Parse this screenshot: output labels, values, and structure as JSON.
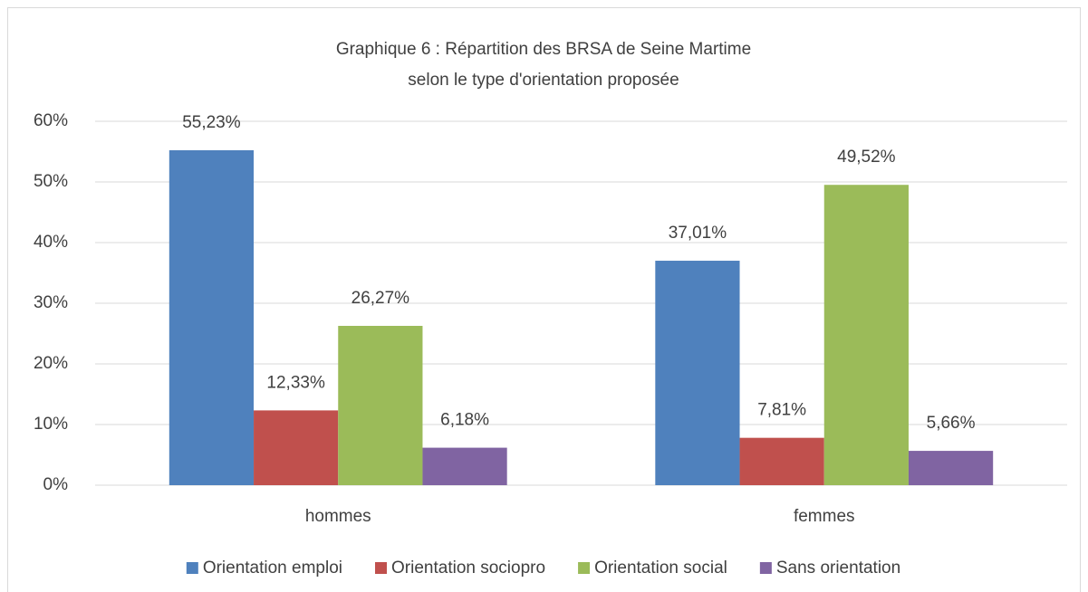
{
  "chart_data": {
    "type": "bar",
    "title": [
      "Graphique 6 : Répartition des BRSA de Seine Martime",
      "selon le type d'orientation proposée"
    ],
    "categories": [
      "hommes",
      "femmes"
    ],
    "series": [
      {
        "name": "Orientation emploi",
        "color": "#4f81bd",
        "values": [
          55.23,
          37.01
        ],
        "value_labels": [
          "55,23%",
          "37,01%"
        ]
      },
      {
        "name": "Orientation sociopro",
        "color": "#c0504d",
        "values": [
          12.33,
          7.81
        ],
        "value_labels": [
          "12,33%",
          "7,81%"
        ]
      },
      {
        "name": "Orientation social",
        "color": "#9bbb59",
        "values": [
          26.27,
          49.52
        ],
        "value_labels": [
          "26,27%",
          "49,52%"
        ]
      },
      {
        "name": "Sans orientation",
        "color": "#8064a2",
        "values": [
          6.18,
          5.66
        ],
        "value_labels": [
          "6,18%",
          "5,66%"
        ]
      }
    ],
    "ylim": [
      0,
      60
    ],
    "yticks": [
      {
        "value": 0,
        "label": "0%"
      },
      {
        "value": 10,
        "label": "10%"
      },
      {
        "value": 20,
        "label": "20%"
      },
      {
        "value": 30,
        "label": "30%"
      },
      {
        "value": 40,
        "label": "40%"
      },
      {
        "value": 50,
        "label": "50%"
      },
      {
        "value": 60,
        "label": "60%"
      }
    ],
    "grid": true,
    "legend": "bottom"
  }
}
